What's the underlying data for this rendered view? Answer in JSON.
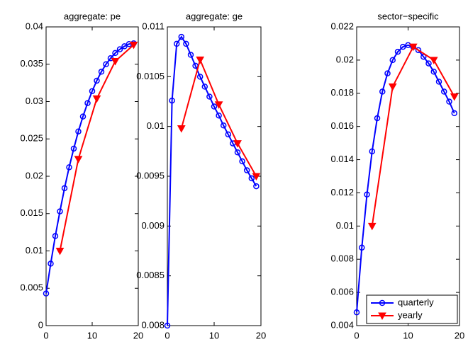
{
  "chart_data": [
    {
      "type": "line",
      "title": "aggregate: pe",
      "xlim": [
        0,
        20
      ],
      "xticks": [
        0,
        10,
        20
      ],
      "ylim": [
        0,
        0.04
      ],
      "yticks": [
        0,
        0.005,
        0.01,
        0.015,
        0.02,
        0.025,
        0.03,
        0.035,
        0.04
      ],
      "series": [
        {
          "name": "quarterly",
          "color": "#0000ff",
          "marker": "circle",
          "x": [
            0,
            1,
            2,
            3,
            4,
            5,
            6,
            7,
            8,
            9,
            10,
            11,
            12,
            13,
            14,
            15,
            16,
            17,
            18,
            19
          ],
          "values": [
            0.0043,
            0.0083,
            0.012,
            0.0153,
            0.0184,
            0.0212,
            0.0237,
            0.026,
            0.028,
            0.0298,
            0.0314,
            0.0328,
            0.034,
            0.035,
            0.0358,
            0.0365,
            0.037,
            0.0374,
            0.0377,
            0.0378
          ]
        },
        {
          "name": "yearly",
          "color": "#ff0000",
          "marker": "triangle-down",
          "x": [
            3,
            7,
            11,
            15,
            19
          ],
          "values": [
            0.01,
            0.0223,
            0.0304,
            0.0354,
            0.0376
          ]
        }
      ]
    },
    {
      "type": "line",
      "title": "aggregate: ge",
      "xlim": [
        0,
        20
      ],
      "xticks": [
        0,
        10,
        20
      ],
      "ylim": [
        0.008,
        0.011
      ],
      "yticks": [
        0.008,
        0.0085,
        0.009,
        0.0095,
        0.01,
        0.0105,
        0.011
      ],
      "series": [
        {
          "name": "quarterly",
          "color": "#0000ff",
          "marker": "circle",
          "x": [
            0,
            1,
            2,
            3,
            4,
            5,
            6,
            7,
            8,
            9,
            10,
            11,
            12,
            13,
            14,
            15,
            16,
            17,
            18,
            19
          ],
          "values": [
            0.008,
            0.01026,
            0.01083,
            0.0109,
            0.01083,
            0.01072,
            0.01061,
            0.0105,
            0.0104,
            0.0103,
            0.0102,
            0.01011,
            0.01001,
            0.00992,
            0.00983,
            0.00974,
            0.00965,
            0.00956,
            0.00948,
            0.0094
          ]
        },
        {
          "name": "yearly",
          "color": "#ff0000",
          "marker": "triangle-down",
          "x": [
            3,
            7,
            11,
            15,
            19
          ],
          "values": [
            0.00998,
            0.01067,
            0.01022,
            0.00983,
            0.0095
          ]
        }
      ]
    },
    {
      "type": "line",
      "title": "sector−specific",
      "xlim": [
        0,
        20
      ],
      "xticks": [
        0,
        10,
        20
      ],
      "ylim": [
        0.004,
        0.022
      ],
      "yticks": [
        0.004,
        0.006,
        0.008,
        0.01,
        0.012,
        0.014,
        0.016,
        0.018,
        0.02,
        0.022
      ],
      "legend": "lower right",
      "series": [
        {
          "name": "quarterly",
          "color": "#0000ff",
          "marker": "circle",
          "x": [
            0,
            1,
            2,
            3,
            4,
            5,
            6,
            7,
            8,
            9,
            10,
            11,
            12,
            13,
            14,
            15,
            16,
            17,
            18,
            19
          ],
          "values": [
            0.0048,
            0.0087,
            0.0119,
            0.0145,
            0.0165,
            0.0181,
            0.0192,
            0.02,
            0.0205,
            0.0208,
            0.0209,
            0.0208,
            0.0206,
            0.0202,
            0.0198,
            0.0193,
            0.0187,
            0.0181,
            0.0175,
            0.0168
          ]
        },
        {
          "name": "yearly",
          "color": "#ff0000",
          "marker": "triangle-down",
          "x": [
            3,
            7,
            11,
            15,
            19
          ],
          "values": [
            0.01,
            0.0184,
            0.0208,
            0.02,
            0.0178
          ]
        }
      ]
    }
  ]
}
